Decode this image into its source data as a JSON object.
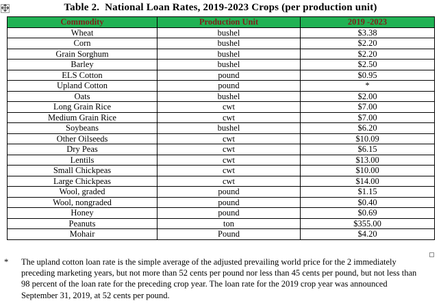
{
  "page": {
    "title": "Table 2.  National Loan Rates, 2019-2023 Crops (per production unit)"
  },
  "colors": {
    "header_bg": "#21B254",
    "header_fg": "#7B241C",
    "border": "#000000"
  },
  "icons": {
    "table_move_handle": "four-direction-move-arrow",
    "table_resize_handle": "small-square"
  },
  "table": {
    "columns": [
      "Commodity",
      "Production Unit",
      "2019 -2023"
    ],
    "rows": [
      {
        "commodity": "Wheat",
        "unit": "bushel",
        "rate": "$3.38"
      },
      {
        "commodity": "Corn",
        "unit": "bushel",
        "rate": "$2.20"
      },
      {
        "commodity": "Grain Sorghum",
        "unit": "bushel",
        "rate": "$2.20"
      },
      {
        "commodity": "Barley",
        "unit": "bushel",
        "rate": "$2.50"
      },
      {
        "commodity": "ELS Cotton",
        "unit": "pound",
        "rate": "$0.95"
      },
      {
        "commodity": "Upland Cotton",
        "unit": "pound",
        "rate": "*"
      },
      {
        "commodity": "Oats",
        "unit": "bushel",
        "rate": "$2.00"
      },
      {
        "commodity": "Long Grain Rice",
        "unit": "cwt",
        "rate": "$7.00"
      },
      {
        "commodity": "Medium Grain Rice",
        "unit": "cwt",
        "rate": "$7.00"
      },
      {
        "commodity": "Soybeans",
        "unit": "bushel",
        "rate": "$6.20"
      },
      {
        "commodity": "Other Oilseeds",
        "unit": "cwt",
        "rate": "$10.09"
      },
      {
        "commodity": "Dry Peas",
        "unit": "cwt",
        "rate": "$6.15"
      },
      {
        "commodity": "Lentils",
        "unit": "cwt",
        "rate": "$13.00"
      },
      {
        "commodity": "Small Chickpeas",
        "unit": "cwt",
        "rate": "$10.00"
      },
      {
        "commodity": "Large Chickpeas",
        "unit": "cwt",
        "rate": "$14.00"
      },
      {
        "commodity": "Wool, graded",
        "unit": "pound",
        "rate": "$1.15"
      },
      {
        "commodity": "Wool, nongraded",
        "unit": "pound",
        "rate": "$0.40"
      },
      {
        "commodity": "Honey",
        "unit": "pound",
        "rate": "$0.69"
      },
      {
        "commodity": "Peanuts",
        "unit": "ton",
        "rate": "$355.00"
      },
      {
        "commodity": "Mohair",
        "unit": "Pound",
        "rate": "$4.20"
      }
    ]
  },
  "footnote": {
    "marker": "*",
    "text": "The upland cotton loan rate is the simple average of the adjusted prevailing world price for the 2 immediately preceding marketing years, but not more than 52 cents per pound nor less than 45 cents per pound, but not less than 98 percent of the loan rate for the preceding crop year. The loan rate for the 2019 crop year was announced September 31, 2019, at 52 cents per pound."
  }
}
